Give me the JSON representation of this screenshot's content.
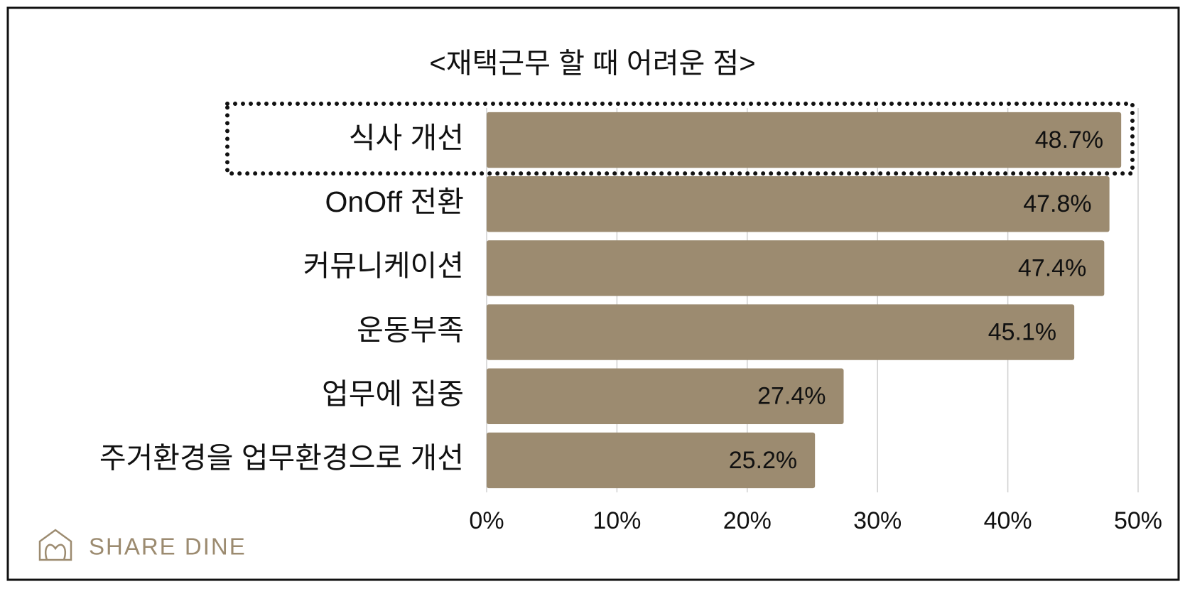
{
  "chart_data": {
    "type": "hbar",
    "title": "<재택근무 할 때  어려운 점>",
    "categories": [
      "식사 개선",
      "OnOff  전환",
      "커뮤니케이션",
      "운동부족",
      "업무에 집중",
      "주거환경을 업무환경으로 개선"
    ],
    "values": [
      48.7,
      47.8,
      47.4,
      45.1,
      27.4,
      25.2
    ],
    "value_labels": [
      "48.7%",
      "47.8%",
      "47.4%",
      "45.1%",
      "27.4%",
      "25.2%"
    ],
    "color": "#9c8b70",
    "xlim": [
      0,
      50
    ],
    "xticks": [
      {
        "value": 0,
        "label": "0%"
      },
      {
        "value": 10,
        "label": "10%"
      },
      {
        "value": 20,
        "label": "20%"
      },
      {
        "value": 30,
        "label": "30%"
      },
      {
        "value": 40,
        "label": "40%"
      },
      {
        "value": 50,
        "label": "50%"
      }
    ],
    "grid": true,
    "brand": "SHARE DINE"
  }
}
